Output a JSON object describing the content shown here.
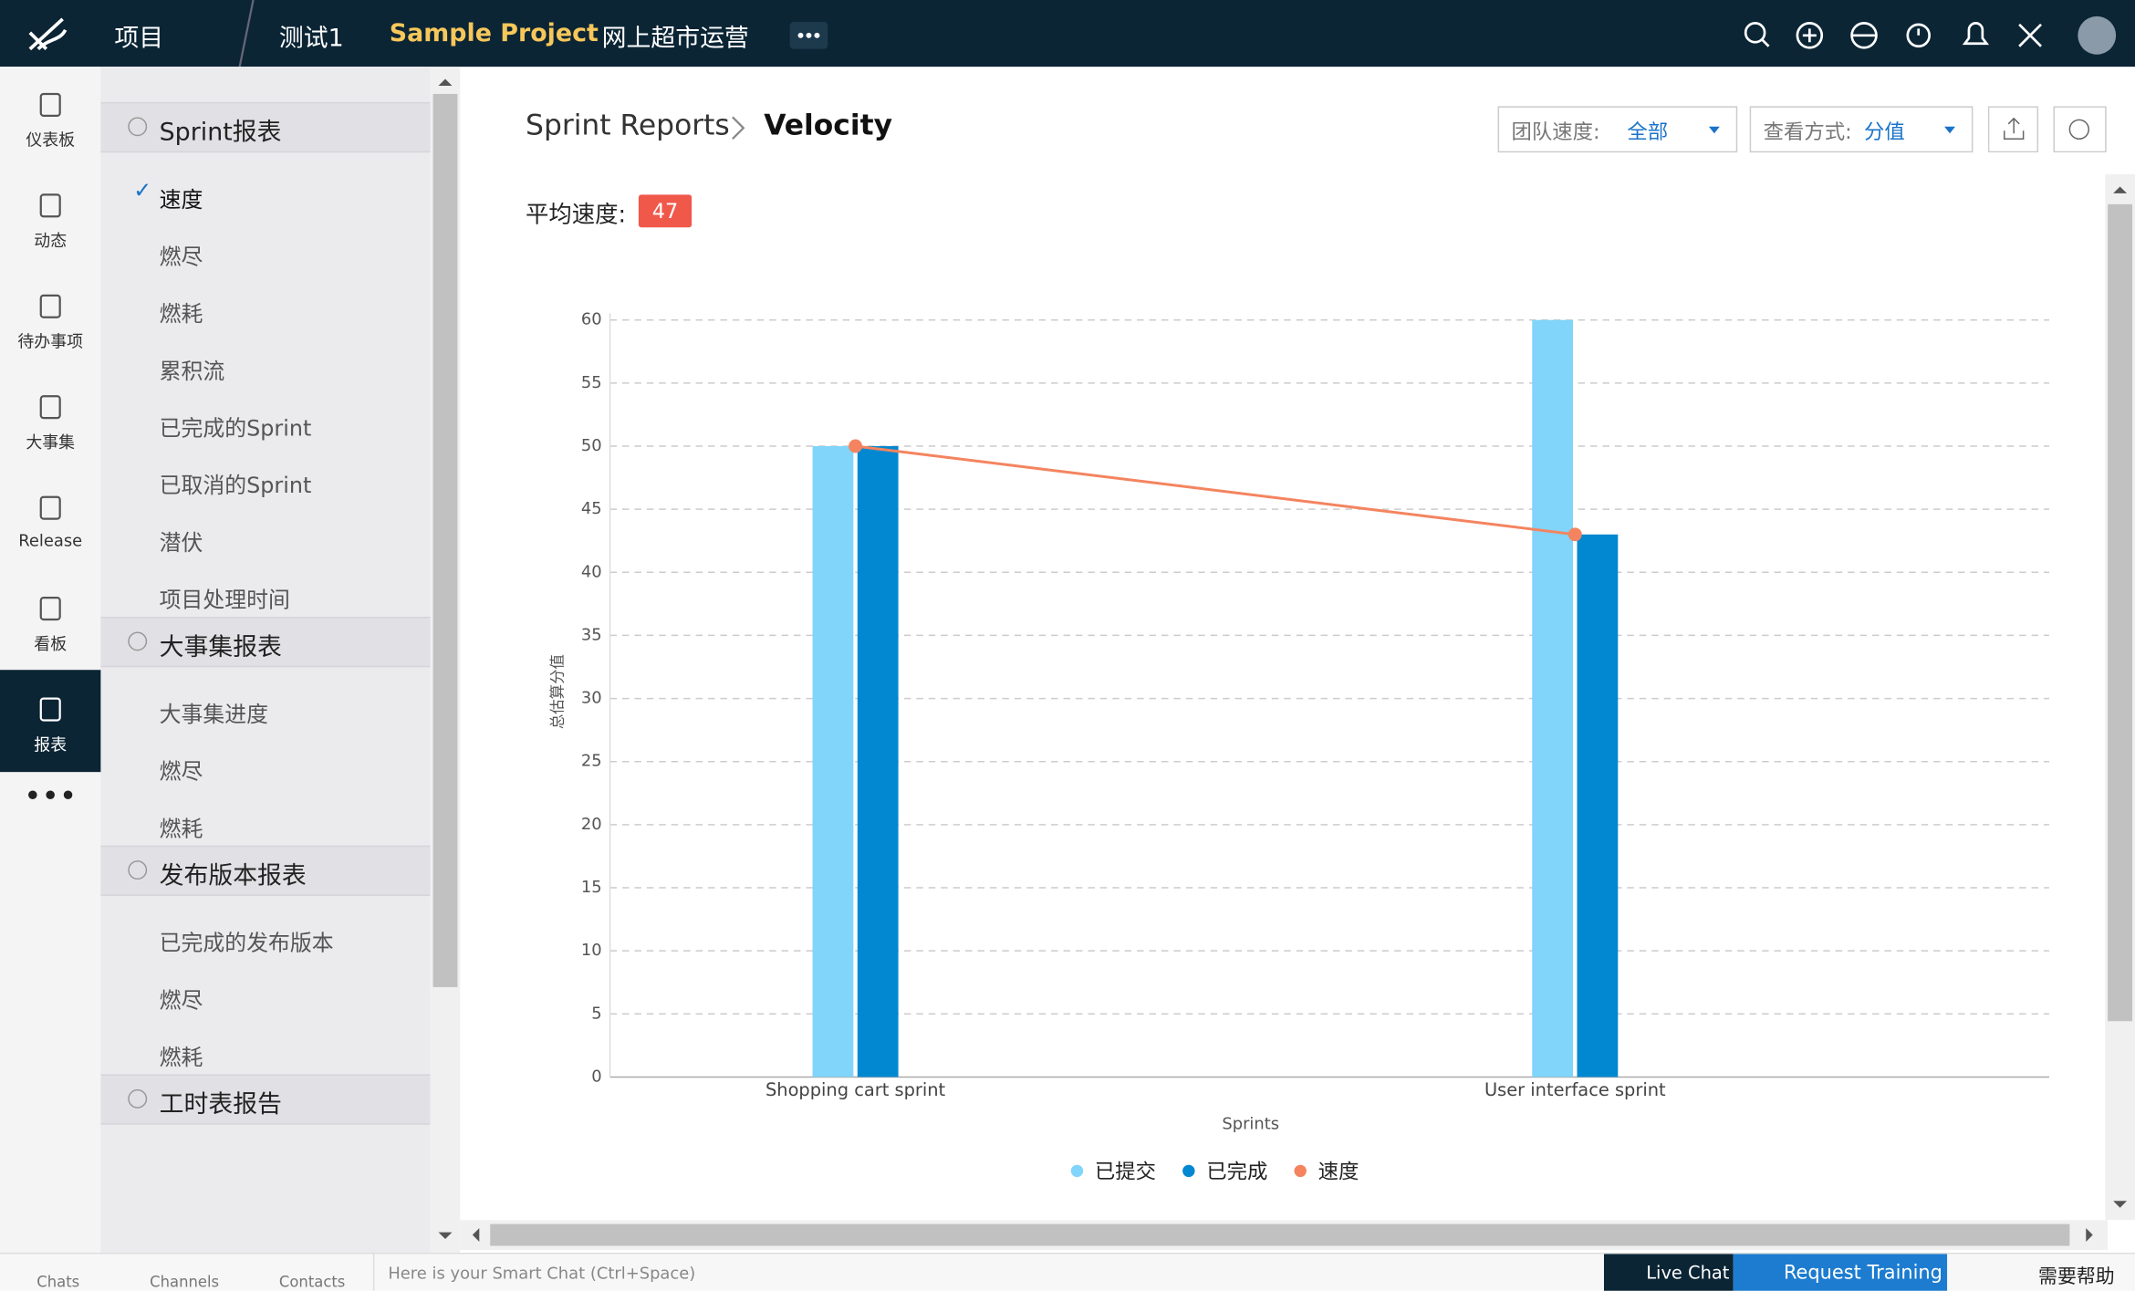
{
  "topbar": {
    "project": "项目",
    "tabs": [
      "测试1",
      "Sample Project",
      "网上超市运营"
    ]
  },
  "rail": [
    "仪表板",
    "动态",
    "待办事项",
    "大事集",
    "Release",
    "看板",
    "报表"
  ],
  "menu": [
    {
      "title": "Sprint报表",
      "items": [
        "速度",
        "燃尽",
        "燃耗",
        "累积流",
        "已完成的Sprint",
        "已取消的Sprint",
        "潜伏",
        "项目处理时间"
      ]
    },
    {
      "title": "大事集报表",
      "items": [
        "大事集进度",
        "燃尽",
        "燃耗"
      ]
    },
    {
      "title": "发布版本报表",
      "items": [
        "已完成的发布版本",
        "燃尽",
        "燃耗"
      ]
    },
    {
      "title": "工时表报告"
    }
  ],
  "breadcrumb": {
    "parent": "Sprint Reports",
    "current": "Velocity"
  },
  "filters": [
    {
      "label": "团队速度:",
      "value": "全部"
    },
    {
      "label": "查看方式:",
      "value": "分值"
    }
  ],
  "average": {
    "label": "平均速度:",
    "value": 47
  },
  "chart_data": {
    "type": "bar",
    "categories": [
      "Shopping cart sprint",
      "User interface sprint"
    ],
    "xlabel": "Sprints",
    "ylabel": "总估算分值",
    "series": [
      {
        "name": "已提交",
        "color": "#81d4fa",
        "values": [
          50,
          60
        ]
      },
      {
        "name": "已完成",
        "color": "#0288d1",
        "values": [
          50,
          43
        ]
      },
      {
        "name": "速度",
        "color": "#f4845f",
        "type": "line",
        "values": [
          50,
          43
        ]
      }
    ],
    "ylim": [
      0,
      60
    ],
    "yticks": [
      0,
      5,
      10,
      15,
      20,
      25,
      30,
      35,
      40,
      45,
      50,
      55,
      60
    ],
    "grid": true,
    "legend": "bottom"
  },
  "footer": {
    "tabs": [
      "Chats",
      "Channels",
      "Contacts"
    ],
    "placeholder": "Here is your Smart Chat (Ctrl+Space)",
    "buttons": [
      "Live Chat",
      "Request Training",
      "需要帮助"
    ]
  }
}
